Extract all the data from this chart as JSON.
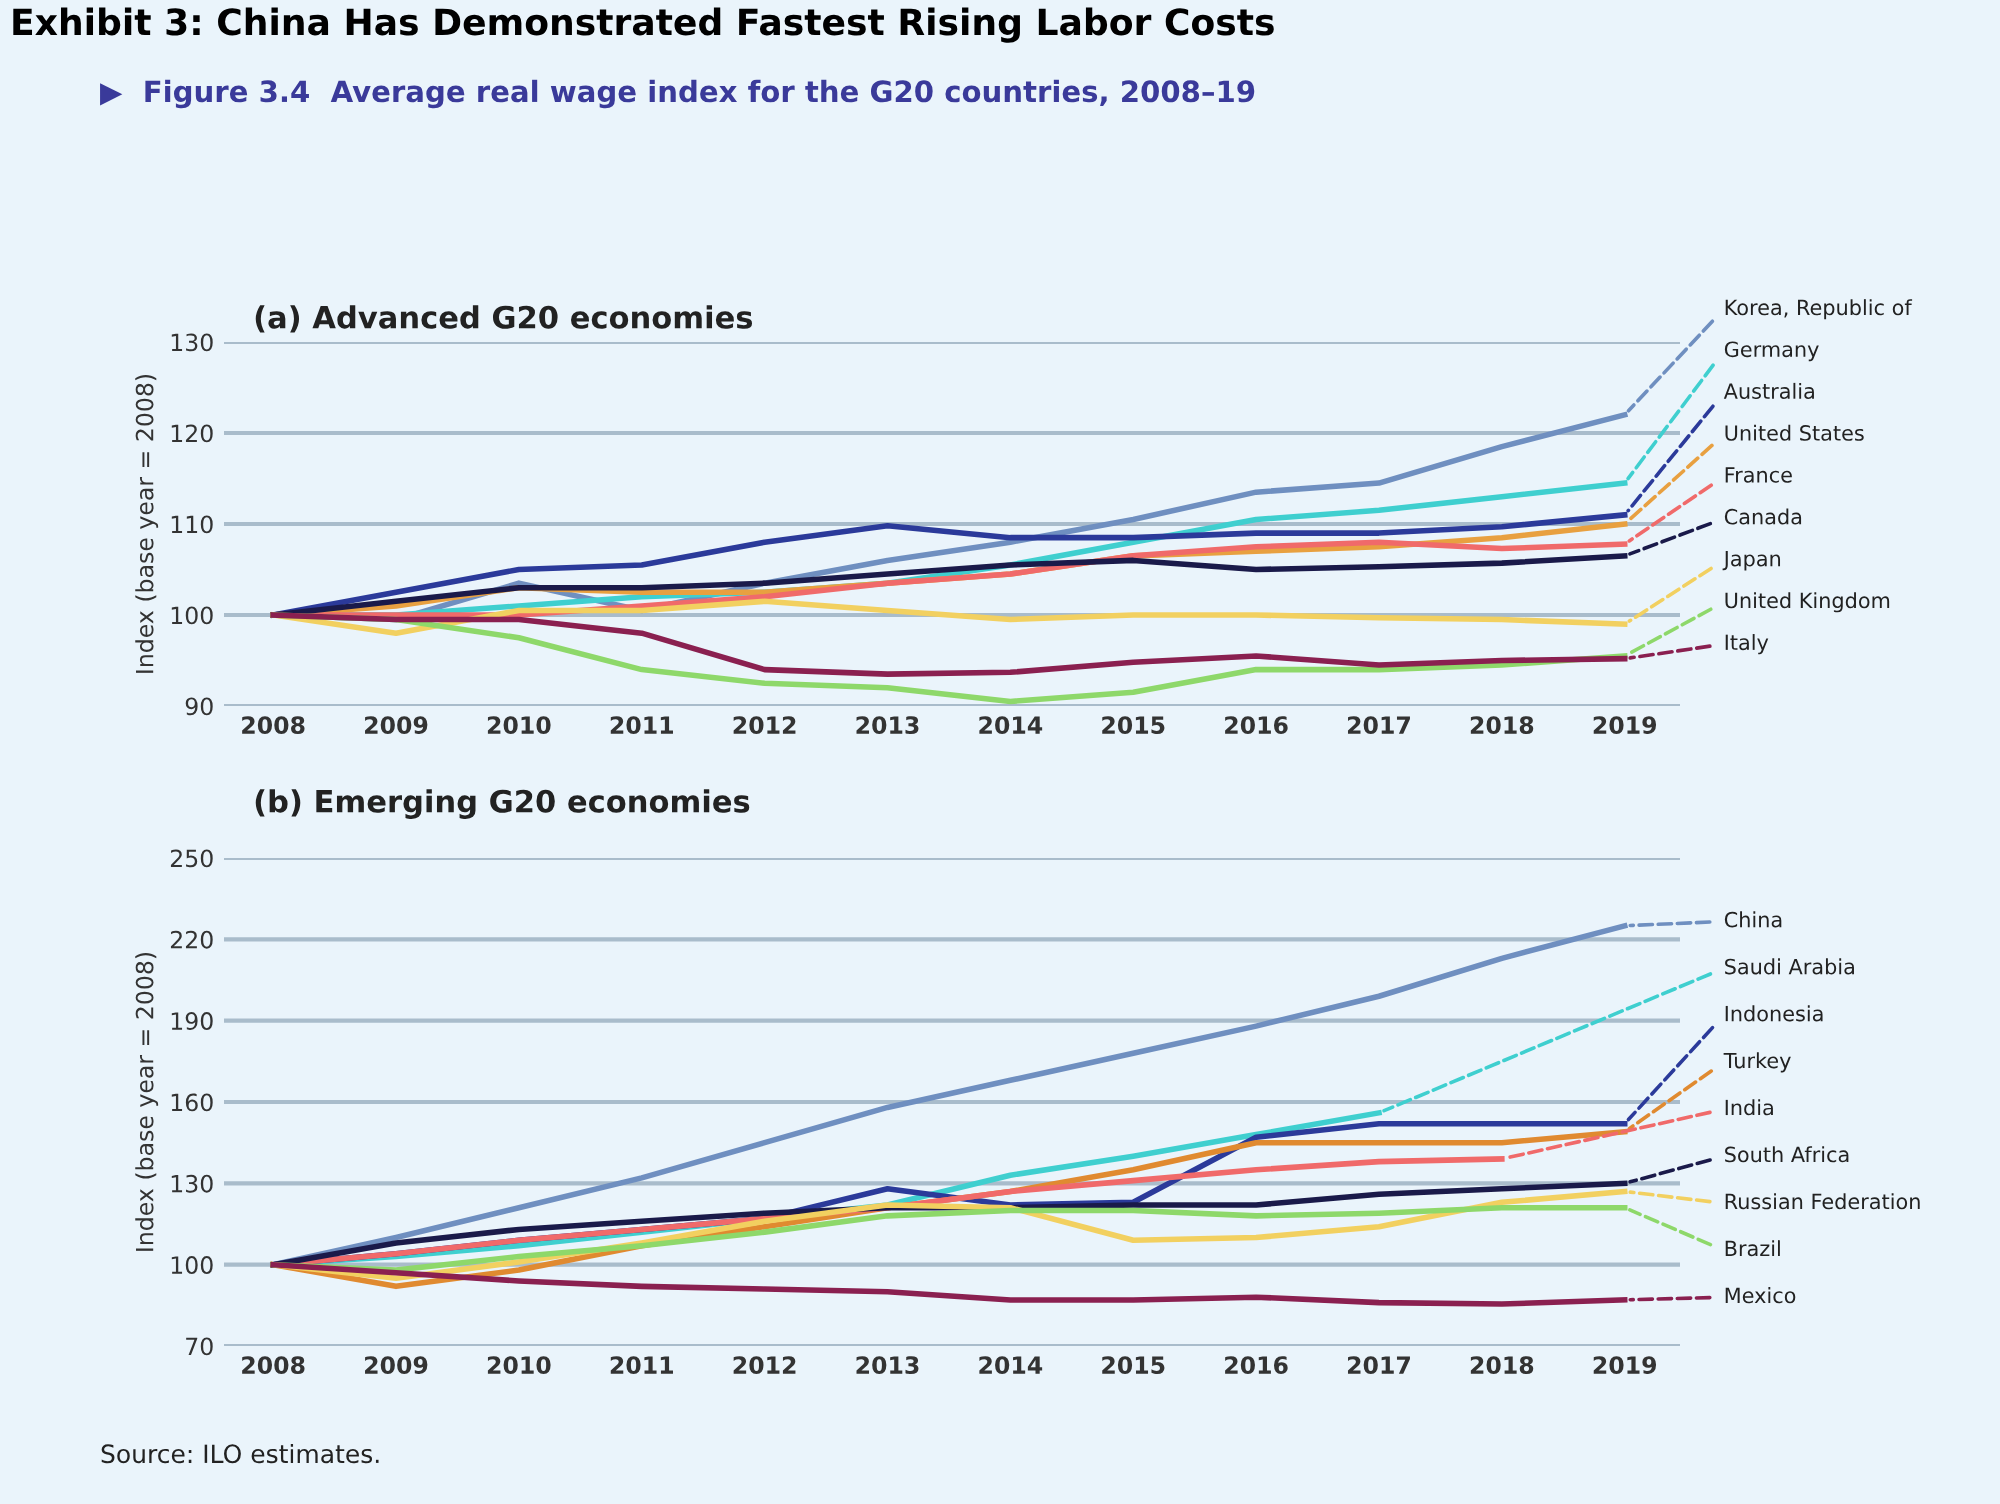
{
  "chart_data": [
    {
      "type": "line",
      "title": "(a) Advanced G20 economies",
      "ylabel": "Index (base year = 2008)",
      "annotations": [
        "Exhibit 3: China Has Demonstrated Fastest Rising Labor Costs",
        "▶  Figure 3.4  Average real wage index for the G20 countries, 2008–19"
      ],
      "x": [
        2008,
        2009,
        2010,
        2011,
        2012,
        2013,
        2014,
        2015,
        2016,
        2017,
        2018,
        2019
      ],
      "xlim": [
        2007.6,
        2019.45
      ],
      "xticks": [
        2008,
        2009,
        2010,
        2011,
        2012,
        2013,
        2014,
        2015,
        2016,
        2017,
        2018,
        2019
      ],
      "ylim": [
        90,
        130
      ],
      "yticks": [
        90,
        100,
        110,
        120,
        130
      ],
      "grid": "y",
      "legend": "right",
      "series": [
        {
          "name": "Korea, Republic of",
          "color": "#6f8fc0",
          "values": [
            100,
            99.5,
            103.5,
            100.5,
            103.5,
            106,
            108,
            110.5,
            113.5,
            114.5,
            118.5,
            122
          ]
        },
        {
          "name": "Germany",
          "color": "#3fcfcf",
          "values": [
            100,
            100,
            101,
            102,
            102.5,
            103.5,
            105.5,
            108,
            110.5,
            111.5,
            113,
            114.5
          ]
        },
        {
          "name": "Australia",
          "color": "#2b3a9a",
          "values": [
            100,
            102.5,
            105,
            105.5,
            108,
            109.8,
            108.5,
            108.5,
            109,
            109,
            109.7,
            111
          ]
        },
        {
          "name": "United States",
          "color": "#e8a040",
          "values": [
            100,
            101,
            103,
            102.5,
            102.5,
            103.5,
            104.5,
            106.5,
            107,
            107.5,
            108.5,
            110
          ]
        },
        {
          "name": "France",
          "color": "#f06a6a",
          "values": [
            100,
            100,
            100,
            101,
            102,
            103.5,
            104.5,
            106.5,
            107.5,
            108,
            107.3,
            107.8
          ]
        },
        {
          "name": "Canada",
          "color": "#1a1a4a",
          "values": [
            100,
            101.5,
            103,
            103,
            103.5,
            104.5,
            105.5,
            106,
            105,
            105.3,
            105.7,
            106.5
          ]
        },
        {
          "name": "Japan",
          "color": "#f2d060",
          "values": [
            100,
            98,
            100.5,
            100.5,
            101.5,
            100.5,
            99.5,
            100,
            100,
            99.7,
            99.5,
            99
          ]
        },
        {
          "name": "United Kingdom",
          "color": "#8ed86a",
          "values": [
            100,
            99.5,
            97.5,
            94,
            92.5,
            92,
            90.5,
            91.5,
            94,
            94,
            94.5,
            95.5
          ]
        },
        {
          "name": "Italy",
          "color": "#8a2050",
          "values": [
            100,
            99.5,
            99.5,
            98,
            94,
            93.5,
            93.7,
            94.8,
            95.5,
            94.5,
            95,
            95.2
          ]
        }
      ]
    },
    {
      "type": "line",
      "title": "(b) Emerging G20 economies",
      "ylabel": "Index (base year = 2008)",
      "annotations": [
        "Source: ILO estimates."
      ],
      "x": [
        2008,
        2009,
        2010,
        2011,
        2012,
        2013,
        2014,
        2015,
        2016,
        2017,
        2018,
        2019
      ],
      "xlim": [
        2007.6,
        2019.45
      ],
      "xticks": [
        2008,
        2009,
        2010,
        2011,
        2012,
        2013,
        2014,
        2015,
        2016,
        2017,
        2018,
        2019
      ],
      "ylim": [
        70,
        250
      ],
      "yticks": [
        70,
        100,
        130,
        160,
        190,
        220,
        250
      ],
      "grid": "y",
      "legend": "right",
      "series": [
        {
          "name": "China",
          "color": "#6f8fc0",
          "values": [
            100,
            110,
            121,
            132,
            145,
            158,
            168,
            178,
            188,
            199,
            213,
            225
          ]
        },
        {
          "name": "Saudi Arabia",
          "color": "#3fcfcf",
          "values": [
            100,
            103,
            107,
            112,
            117,
            122,
            133,
            140,
            148,
            156,
            null,
            null
          ]
        },
        {
          "name": "Indonesia",
          "color": "#2b3a9a",
          "values": [
            100,
            104,
            109,
            113,
            117,
            128,
            122,
            123,
            147,
            152,
            152,
            152
          ]
        },
        {
          "name": "Turkey",
          "color": "#e08a30",
          "values": [
            100,
            92,
            98,
            107,
            114,
            121,
            127,
            135,
            145,
            145,
            145,
            149
          ]
        },
        {
          "name": "India",
          "color": "#f06a6a",
          "values": [
            100,
            104,
            109,
            113,
            117,
            121,
            127,
            131,
            135,
            138,
            139,
            null
          ]
        },
        {
          "name": "South Africa",
          "color": "#1a1a4a",
          "values": [
            100,
            108,
            113,
            116,
            119,
            121,
            121,
            122,
            122,
            126,
            128,
            130
          ]
        },
        {
          "name": "Russian Federation",
          "color": "#f2d060",
          "values": [
            100,
            95,
            101,
            108,
            116,
            122,
            121,
            109,
            110,
            114,
            123,
            127
          ]
        },
        {
          "name": "Brazil",
          "color": "#8ed86a",
          "values": [
            100,
            98,
            103,
            107,
            112,
            118,
            120,
            120,
            118,
            119,
            121,
            121
          ]
        },
        {
          "name": "Mexico",
          "color": "#8a2050",
          "values": [
            100,
            97,
            94,
            92,
            91,
            90,
            87,
            87,
            88,
            86,
            85.5,
            87
          ]
        }
      ]
    }
  ]
}
